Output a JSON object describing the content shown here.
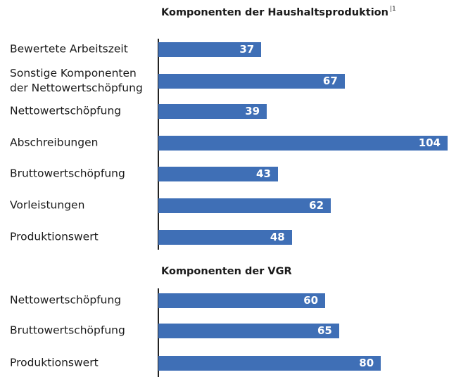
{
  "chart_data": [
    {
      "type": "bar",
      "orientation": "horizontal",
      "title": "Komponenten der Haushaltsproduktion",
      "title_note": "|1",
      "categories": [
        "Bewertete Arbeitszeit",
        "Sonstige Komponenten der Nettowertschöpfung",
        "Nettowertschöpfung",
        "Abschreibungen",
        "Bruttowertschöpfung",
        "Vorleistungen",
        "Produktionswert"
      ],
      "values": [
        37,
        67,
        39,
        104,
        43,
        62,
        48
      ],
      "color": "#3f6fb6",
      "xlim": [
        0,
        104
      ]
    },
    {
      "type": "bar",
      "orientation": "horizontal",
      "title": "Komponenten der VGR",
      "categories": [
        "Nettowertschöpfung",
        "Bruttowertschöpfung",
        "Produktionswert"
      ],
      "values": [
        60,
        65,
        80
      ],
      "color": "#3f6fb6",
      "xlim": [
        0,
        104
      ]
    }
  ]
}
